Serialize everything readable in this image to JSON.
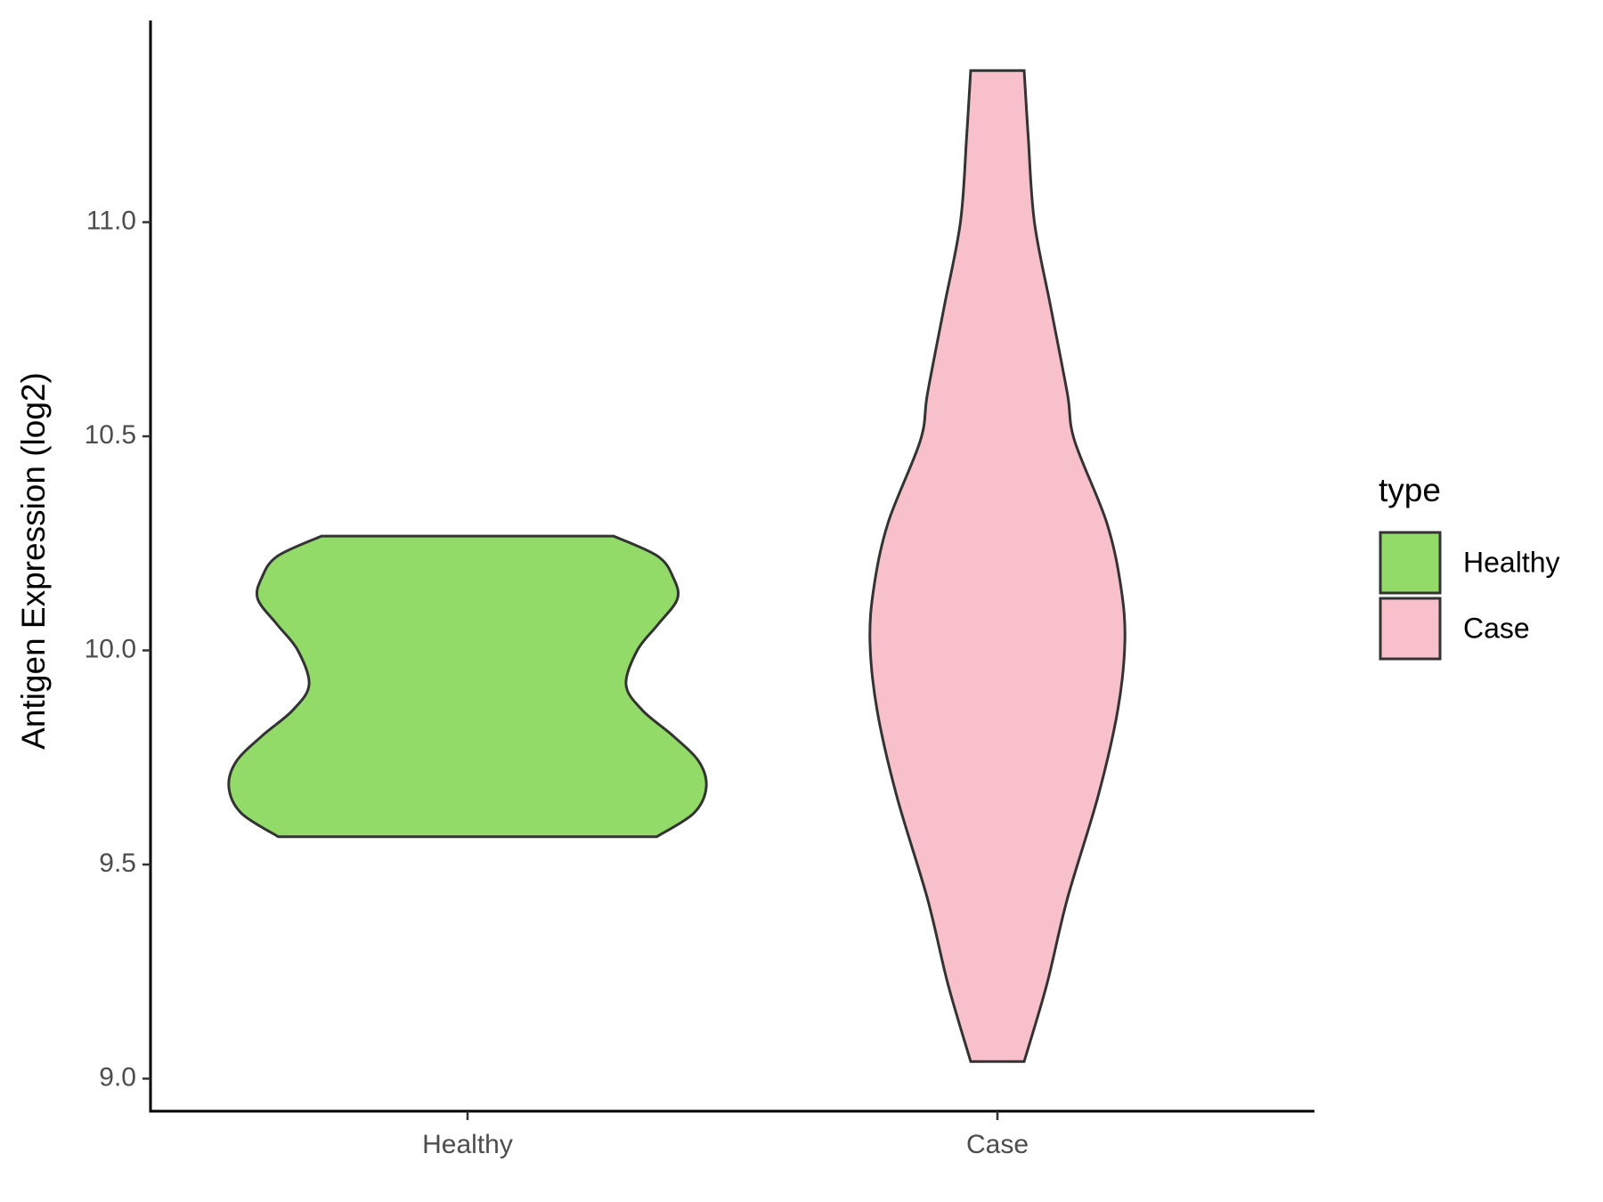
{
  "chart_data": {
    "type": "violin",
    "y_label": "Antigen Expression (log2)",
    "categories": [
      "Healthy",
      "Case"
    ],
    "legend_title": "type",
    "legend_position": "right",
    "ylim": [
      8.924,
      11.471
    ],
    "yticks": [
      {
        "value": 9,
        "label": "9.0"
      },
      9.5,
      {
        "value": 10,
        "label": "10.0"
      },
      10.5,
      {
        "value": 11,
        "label": "11.0"
      }
    ],
    "grid": false,
    "series": [
      {
        "name": "Healthy",
        "color": "#93DB69",
        "y": [
          10.267,
          10.22,
          10.17,
          10.12,
          10.06,
          10.0,
          9.92,
          9.86,
          9.8,
          9.74,
          9.68,
          9.62,
          9.565
        ],
        "density": [
          0.612,
          0.797,
          0.862,
          0.879,
          0.797,
          0.711,
          0.664,
          0.733,
          0.862,
          0.97,
          1.0,
          0.948,
          0.793
        ]
      },
      {
        "name": "Case",
        "color": "#F7C0CB",
        "y": [
          11.354,
          11.2,
          11.0,
          10.8,
          10.6,
          10.49,
          10.3,
          10.15,
          10.02,
          9.86,
          9.66,
          9.42,
          9.22,
          9.04
        ],
        "density": [
          0.112,
          0.129,
          0.155,
          0.224,
          0.293,
          0.323,
          0.457,
          0.517,
          0.534,
          0.504,
          0.422,
          0.293,
          0.207,
          0.112
        ]
      }
    ]
  }
}
